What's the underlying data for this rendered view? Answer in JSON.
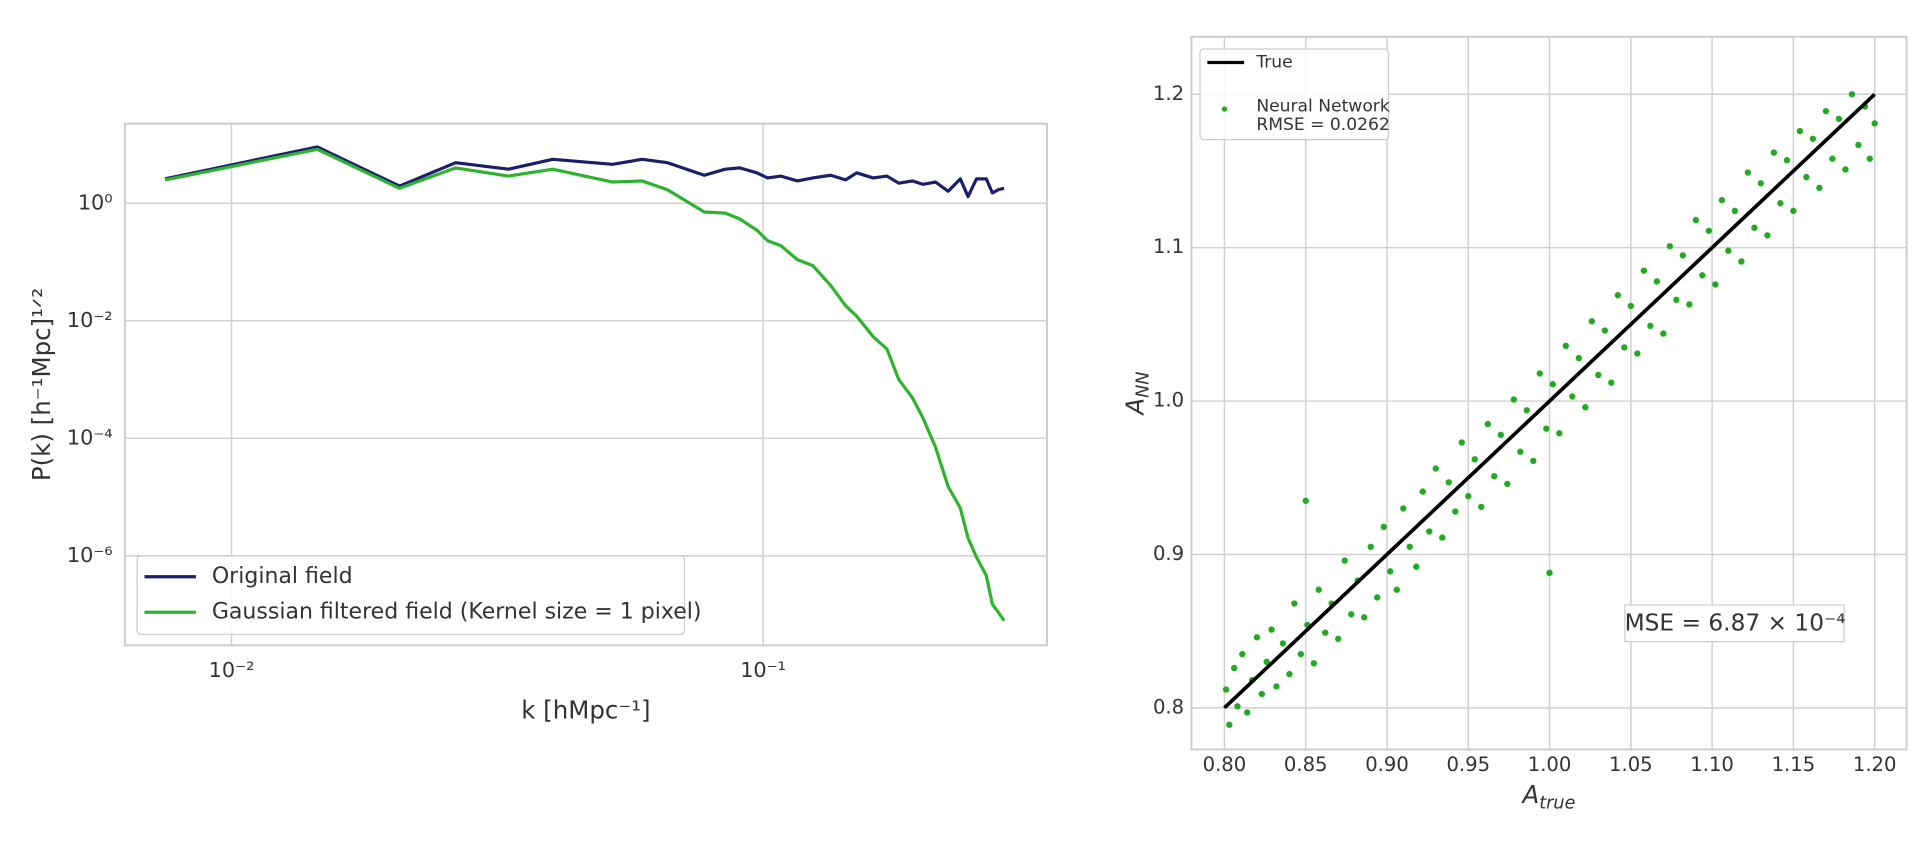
{
  "chart_data": [
    {
      "type": "line",
      "xscale": "log",
      "yscale": "log",
      "grid": true,
      "legend": "lower left",
      "xlabel": "k [hMpc⁻¹]",
      "ylabel": "P(k) [h⁻¹Mpc]¹ᐟ²",
      "xlim": [
        0.0063,
        0.342
      ],
      "ylim": [
        3e-08,
        22.6
      ],
      "xticks": [
        {
          "value": 0.01,
          "label": "10⁻²"
        },
        {
          "value": 0.1,
          "label": "10⁻¹"
        }
      ],
      "yticks": [
        {
          "value": 1,
          "label": "10⁰"
        },
        {
          "value": 0.01,
          "label": "10⁻²"
        },
        {
          "value": 0.0001,
          "label": "10⁻⁴"
        },
        {
          "value": 1e-06,
          "label": "10⁻⁶"
        }
      ],
      "x": [
        0.0075,
        0.0145,
        0.0207,
        0.0264,
        0.0332,
        0.0402,
        0.0521,
        0.0592,
        0.0661,
        0.0775,
        0.0849,
        0.0904,
        0.0973,
        0.102,
        0.108,
        0.116,
        0.124,
        0.134,
        0.143,
        0.15,
        0.161,
        0.171,
        0.18,
        0.191,
        0.2,
        0.211,
        0.223,
        0.235,
        0.243,
        0.252,
        0.263,
        0.27,
        0.277,
        0.284
      ],
      "series": [
        {
          "name": "Original field",
          "color": "#1b1f6b",
          "values": [
            2.61,
            9.1,
            1.96,
            4.9,
            3.8,
            5.6,
            4.6,
            5.6,
            4.9,
            3.0,
            3.8,
            4.0,
            3.3,
            2.7,
            2.9,
            2.4,
            2.7,
            3.0,
            2.5,
            3.3,
            2.7,
            2.9,
            2.2,
            2.4,
            2.1,
            2.3,
            1.6,
            2.6,
            1.3,
            2.6,
            2.6,
            1.5,
            1.7,
            1.8
          ]
        },
        {
          "name": "Gaussian filtered field (Kernel size = 1 pixel)",
          "color": "#2db32d",
          "values": [
            2.5,
            8.3,
            1.8,
            4.0,
            2.9,
            3.8,
            2.3,
            2.4,
            1.7,
            0.71,
            0.68,
            0.54,
            0.35,
            0.23,
            0.19,
            0.11,
            0.087,
            0.04,
            0.018,
            0.012,
            0.0054,
            0.0033,
            0.001,
            0.00049,
            0.00022,
            7.1e-05,
            1.5e-05,
            6.5e-06,
            2e-06,
            9.5e-07,
            4.6e-07,
            1.5e-07,
            1.1e-07,
            7.9e-08
          ]
        }
      ]
    },
    {
      "type": "scatter",
      "grid": true,
      "legend": "upper left",
      "xlabel": {
        "text": "A",
        "subscript": "true"
      },
      "ylabel": {
        "text": "A",
        "subscript": "NN"
      },
      "annotation": "MSE = 6.87 × 10⁻⁴",
      "xlim": [
        0.7797,
        1.2196
      ],
      "ylim": [
        0.7729,
        1.2375
      ],
      "xticks": [
        {
          "value": 0.8,
          "label": "0.80"
        },
        0.85,
        {
          "value": 0.9,
          "label": "0.90"
        },
        0.95,
        {
          "value": 1,
          "label": "1.00"
        },
        1.05,
        {
          "value": 1.1,
          "label": "1.10"
        },
        1.15,
        {
          "value": 1.2,
          "label": "1.20"
        }
      ],
      "yticks": [
        0.8,
        0.9,
        {
          "value": 1,
          "label": "1.0"
        },
        1.1,
        1.2
      ],
      "series": [
        {
          "name": "True",
          "type": "line",
          "color": "#000000",
          "x": [
            0.8,
            1.2
          ],
          "y": [
            0.8,
            1.2
          ]
        },
        {
          "name": "Neural Network",
          "legend_note": "RMSE = 0.0262",
          "type": "scatter",
          "color": "#22aa22",
          "x": [
            0.801,
            0.803,
            0.806,
            0.808,
            0.811,
            0.814,
            0.817,
            0.82,
            0.823,
            0.826,
            0.829,
            0.832,
            0.836,
            0.84,
            0.843,
            0.847,
            0.851,
            0.855,
            0.858,
            0.862,
            0.866,
            0.87,
            0.874,
            0.878,
            0.882,
            0.886,
            0.89,
            0.894,
            0.898,
            0.902,
            0.906,
            0.91,
            0.914,
            0.918,
            0.922,
            0.926,
            0.93,
            0.934,
            0.938,
            0.942,
            0.946,
            0.95,
            0.954,
            0.958,
            0.962,
            0.966,
            0.97,
            0.974,
            0.978,
            0.982,
            0.986,
            0.99,
            0.994,
            0.998,
            1.002,
            1.006,
            1.01,
            1.014,
            1.018,
            1.022,
            1.026,
            1.03,
            1.034,
            1.038,
            1.042,
            1.046,
            1.05,
            1.054,
            1.058,
            1.062,
            1.066,
            1.07,
            1.074,
            1.078,
            1.082,
            1.086,
            1.09,
            1.094,
            1.098,
            1.102,
            1.106,
            1.11,
            1.114,
            1.118,
            1.122,
            1.126,
            1.13,
            1.134,
            1.138,
            1.142,
            1.146,
            1.15,
            1.154,
            1.158,
            1.162,
            1.166,
            1.17,
            1.174,
            1.178,
            1.182,
            1.186,
            1.19,
            1.194,
            1.197,
            1.2,
            0.85,
            1.0
          ],
          "y": [
            0.812,
            0.789,
            0.826,
            0.801,
            0.835,
            0.797,
            0.818,
            0.846,
            0.809,
            0.83,
            0.851,
            0.814,
            0.842,
            0.822,
            0.868,
            0.835,
            0.854,
            0.829,
            0.877,
            0.849,
            0.868,
            0.845,
            0.896,
            0.861,
            0.883,
            0.859,
            0.905,
            0.872,
            0.918,
            0.889,
            0.877,
            0.93,
            0.905,
            0.892,
            0.941,
            0.915,
            0.956,
            0.911,
            0.947,
            0.928,
            0.973,
            0.938,
            0.962,
            0.931,
            0.985,
            0.951,
            0.978,
            0.946,
            1.001,
            0.967,
            0.994,
            0.961,
            1.018,
            0.982,
            1.011,
            0.979,
            1.036,
            1.003,
            1.028,
            0.996,
            1.052,
            1.017,
            1.046,
            1.012,
            1.069,
            1.035,
            1.062,
            1.031,
            1.085,
            1.049,
            1.078,
            1.044,
            1.101,
            1.066,
            1.095,
            1.063,
            1.118,
            1.082,
            1.111,
            1.076,
            1.131,
            1.098,
            1.124,
            1.091,
            1.149,
            1.113,
            1.142,
            1.108,
            1.162,
            1.129,
            1.157,
            1.124,
            1.176,
            1.146,
            1.171,
            1.139,
            1.189,
            1.158,
            1.184,
            1.151,
            1.2,
            1.167,
            1.192,
            1.158,
            1.181,
            0.935,
            0.888
          ]
        }
      ]
    }
  ]
}
